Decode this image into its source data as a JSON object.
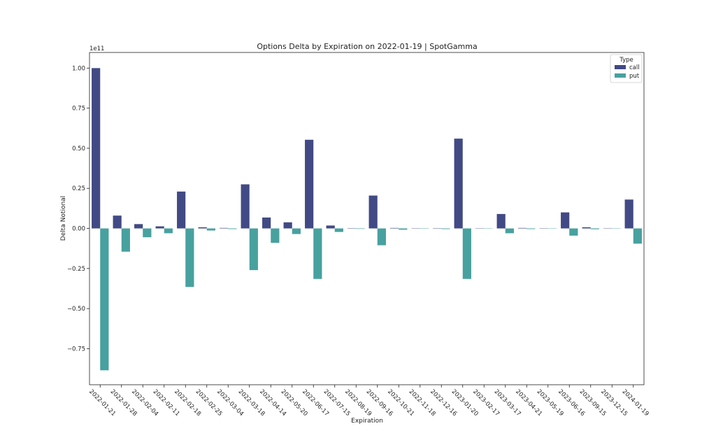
{
  "chart_data": {
    "type": "bar",
    "title": "Options Delta by Expiration on 2022-01-19 | SpotGamma",
    "xlabel": "Expiration",
    "ylabel": "Delta Notional",
    "y_offset_label": "1e11",
    "y_scale_factor": 100000000000,
    "ylim": [
      -0.975,
      1.0975
    ],
    "yticks": [
      1.0,
      0.75,
      0.5,
      0.25,
      0.0,
      -0.25,
      -0.5,
      -0.75
    ],
    "ytick_labels": [
      "1.00",
      "0.75",
      "0.50",
      "0.25",
      "0.00",
      "−0.25",
      "−0.50",
      "−0.75"
    ],
    "legend": {
      "title": "Type",
      "position": "top-right"
    },
    "categories": [
      "2022-01-21",
      "2022-01-28",
      "2022-02-04",
      "2022-02-11",
      "2022-02-18",
      "2022-02-25",
      "2022-03-04",
      "2022-03-18",
      "2022-04-14",
      "2022-05-20",
      "2022-06-17",
      "2022-07-15",
      "2022-08-19",
      "2022-09-16",
      "2022-10-21",
      "2022-11-18",
      "2022-12-16",
      "2023-01-20",
      "2023-02-17",
      "2023-03-17",
      "2023-04-21",
      "2023-05-19",
      "2023-06-16",
      "2023-09-15",
      "2023-12-15",
      "2024-01-19"
    ],
    "series": [
      {
        "name": "call",
        "color": "#414a85",
        "values": [
          1.0,
          0.08,
          0.027,
          0.013,
          0.23,
          0.007,
          0.003,
          0.275,
          0.068,
          0.038,
          0.553,
          0.018,
          0.002,
          0.205,
          0.003,
          0.0,
          0.002,
          0.56,
          0.0,
          0.09,
          0.003,
          0.0,
          0.1,
          0.007,
          0.0,
          0.18
        ]
      },
      {
        "name": "put",
        "color": "#47a19f",
        "values": [
          -0.885,
          -0.145,
          -0.055,
          -0.03,
          -0.365,
          -0.013,
          -0.004,
          -0.26,
          -0.09,
          -0.035,
          -0.315,
          -0.022,
          -0.003,
          -0.105,
          -0.008,
          -0.002,
          -0.004,
          -0.315,
          0.0,
          -0.03,
          -0.004,
          0.0,
          -0.045,
          -0.005,
          0.0,
          -0.095
        ]
      }
    ]
  }
}
